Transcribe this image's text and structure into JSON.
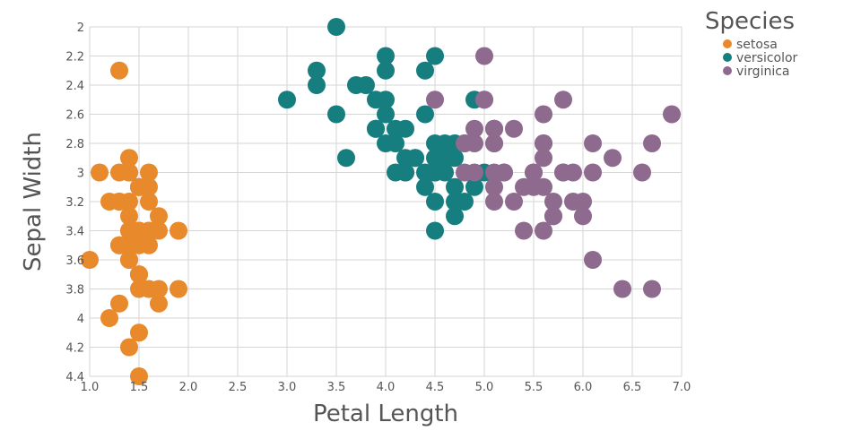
{
  "chart_data": {
    "type": "scatter",
    "xlabel": "Petal Length",
    "ylabel": "Sepal Width",
    "xlim": [
      1.0,
      7.0
    ],
    "ylim": [
      2.0,
      4.4
    ],
    "y_reversed": true,
    "x_ticks": [
      "1.0",
      "1.5",
      "2.0",
      "2.5",
      "3.0",
      "3.5",
      "4.0",
      "4.5",
      "5.0",
      "5.5",
      "6.0",
      "6.5",
      "7.0"
    ],
    "y_ticks": [
      "2",
      "2.2",
      "2.4",
      "2.6",
      "2.8",
      "3",
      "3.2",
      "3.4",
      "3.6",
      "3.8",
      "4",
      "4.2",
      "4.4"
    ],
    "grid": true,
    "legend": {
      "title": "Species",
      "placement": "top-right"
    },
    "series": [
      {
        "name": "setosa",
        "color": "#e8892b",
        "points": [
          [
            1.4,
            3.5
          ],
          [
            1.4,
            3.0
          ],
          [
            1.3,
            3.2
          ],
          [
            1.5,
            3.1
          ],
          [
            1.4,
            3.6
          ],
          [
            1.7,
            3.9
          ],
          [
            1.4,
            3.4
          ],
          [
            1.5,
            3.4
          ],
          [
            1.4,
            2.9
          ],
          [
            1.5,
            3.1
          ],
          [
            1.5,
            3.7
          ],
          [
            1.6,
            3.4
          ],
          [
            1.4,
            3.0
          ],
          [
            1.1,
            3.0
          ],
          [
            1.2,
            4.0
          ],
          [
            1.5,
            4.4
          ],
          [
            1.3,
            3.9
          ],
          [
            1.4,
            3.5
          ],
          [
            1.7,
            3.8
          ],
          [
            1.5,
            3.8
          ],
          [
            1.7,
            3.4
          ],
          [
            1.5,
            3.7
          ],
          [
            1.0,
            3.6
          ],
          [
            1.7,
            3.3
          ],
          [
            1.9,
            3.4
          ],
          [
            1.6,
            3.0
          ],
          [
            1.6,
            3.4
          ],
          [
            1.5,
            3.5
          ],
          [
            1.4,
            3.4
          ],
          [
            1.6,
            3.2
          ],
          [
            1.6,
            3.1
          ],
          [
            1.5,
            3.4
          ],
          [
            1.5,
            4.1
          ],
          [
            1.4,
            4.2
          ],
          [
            1.5,
            3.1
          ],
          [
            1.2,
            3.2
          ],
          [
            1.3,
            3.5
          ],
          [
            1.4,
            3.6
          ],
          [
            1.3,
            3.0
          ],
          [
            1.5,
            3.4
          ],
          [
            1.3,
            3.5
          ],
          [
            1.3,
            2.3
          ],
          [
            1.3,
            3.2
          ],
          [
            1.6,
            3.5
          ],
          [
            1.9,
            3.8
          ],
          [
            1.4,
            3.0
          ],
          [
            1.6,
            3.8
          ],
          [
            1.4,
            3.2
          ],
          [
            1.5,
            3.7
          ],
          [
            1.4,
            3.3
          ]
        ]
      },
      {
        "name": "versicolor",
        "color": "#177e80",
        "points": [
          [
            4.7,
            3.2
          ],
          [
            4.5,
            3.2
          ],
          [
            4.9,
            3.1
          ],
          [
            4.0,
            2.3
          ],
          [
            4.6,
            2.8
          ],
          [
            4.5,
            2.8
          ],
          [
            4.7,
            3.3
          ],
          [
            3.3,
            2.4
          ],
          [
            4.6,
            2.9
          ],
          [
            3.9,
            2.7
          ],
          [
            3.5,
            2.0
          ],
          [
            4.2,
            3.0
          ],
          [
            4.0,
            2.2
          ],
          [
            4.7,
            2.9
          ],
          [
            3.6,
            2.9
          ],
          [
            4.4,
            3.1
          ],
          [
            4.5,
            3.0
          ],
          [
            4.1,
            2.7
          ],
          [
            4.5,
            2.2
          ],
          [
            3.9,
            2.5
          ],
          [
            4.8,
            3.2
          ],
          [
            4.0,
            2.8
          ],
          [
            4.9,
            2.5
          ],
          [
            4.7,
            2.8
          ],
          [
            4.3,
            2.9
          ],
          [
            4.4,
            3.0
          ],
          [
            4.8,
            2.8
          ],
          [
            5.0,
            3.0
          ],
          [
            4.5,
            2.9
          ],
          [
            3.5,
            2.6
          ],
          [
            3.8,
            2.4
          ],
          [
            3.7,
            2.4
          ],
          [
            3.9,
            2.7
          ],
          [
            5.1,
            2.7
          ],
          [
            4.5,
            3.0
          ],
          [
            4.5,
            3.4
          ],
          [
            4.7,
            3.1
          ],
          [
            4.4,
            2.3
          ],
          [
            4.1,
            3.0
          ],
          [
            4.0,
            2.5
          ],
          [
            4.4,
            2.6
          ],
          [
            4.6,
            3.0
          ],
          [
            4.0,
            2.6
          ],
          [
            3.3,
            2.3
          ],
          [
            4.2,
            2.7
          ],
          [
            4.2,
            3.0
          ],
          [
            4.2,
            2.9
          ],
          [
            4.3,
            2.9
          ],
          [
            3.0,
            2.5
          ],
          [
            4.1,
            2.8
          ]
        ]
      },
      {
        "name": "virginica",
        "color": "#8f6a8f",
        "points": [
          [
            6.0,
            3.3
          ],
          [
            5.1,
            2.7
          ],
          [
            5.9,
            3.0
          ],
          [
            5.6,
            2.9
          ],
          [
            5.8,
            3.0
          ],
          [
            6.6,
            3.0
          ],
          [
            4.5,
            2.5
          ],
          [
            6.3,
            2.9
          ],
          [
            5.8,
            2.5
          ],
          [
            6.1,
            3.6
          ],
          [
            5.1,
            3.2
          ],
          [
            5.3,
            2.7
          ],
          [
            5.5,
            3.0
          ],
          [
            5.0,
            2.5
          ],
          [
            5.1,
            2.8
          ],
          [
            5.3,
            3.2
          ],
          [
            5.5,
            3.0
          ],
          [
            6.7,
            3.8
          ],
          [
            6.9,
            2.6
          ],
          [
            5.0,
            2.2
          ],
          [
            5.7,
            3.2
          ],
          [
            4.9,
            2.8
          ],
          [
            6.7,
            2.8
          ],
          [
            4.9,
            2.7
          ],
          [
            5.7,
            3.3
          ],
          [
            6.0,
            3.2
          ],
          [
            4.8,
            2.8
          ],
          [
            4.9,
            3.0
          ],
          [
            5.6,
            2.8
          ],
          [
            5.8,
            3.0
          ],
          [
            6.1,
            2.8
          ],
          [
            6.4,
            3.8
          ],
          [
            5.6,
            2.8
          ],
          [
            5.1,
            2.8
          ],
          [
            5.6,
            2.6
          ],
          [
            6.1,
            3.0
          ],
          [
            5.6,
            3.4
          ],
          [
            5.5,
            3.1
          ],
          [
            4.8,
            3.0
          ],
          [
            5.4,
            3.1
          ],
          [
            5.6,
            3.1
          ],
          [
            5.1,
            3.1
          ],
          [
            5.1,
            2.7
          ],
          [
            5.9,
            3.2
          ],
          [
            5.7,
            3.3
          ],
          [
            5.2,
            3.0
          ],
          [
            5.0,
            2.5
          ],
          [
            5.2,
            3.0
          ],
          [
            5.4,
            3.4
          ],
          [
            5.1,
            3.0
          ]
        ]
      }
    ]
  }
}
